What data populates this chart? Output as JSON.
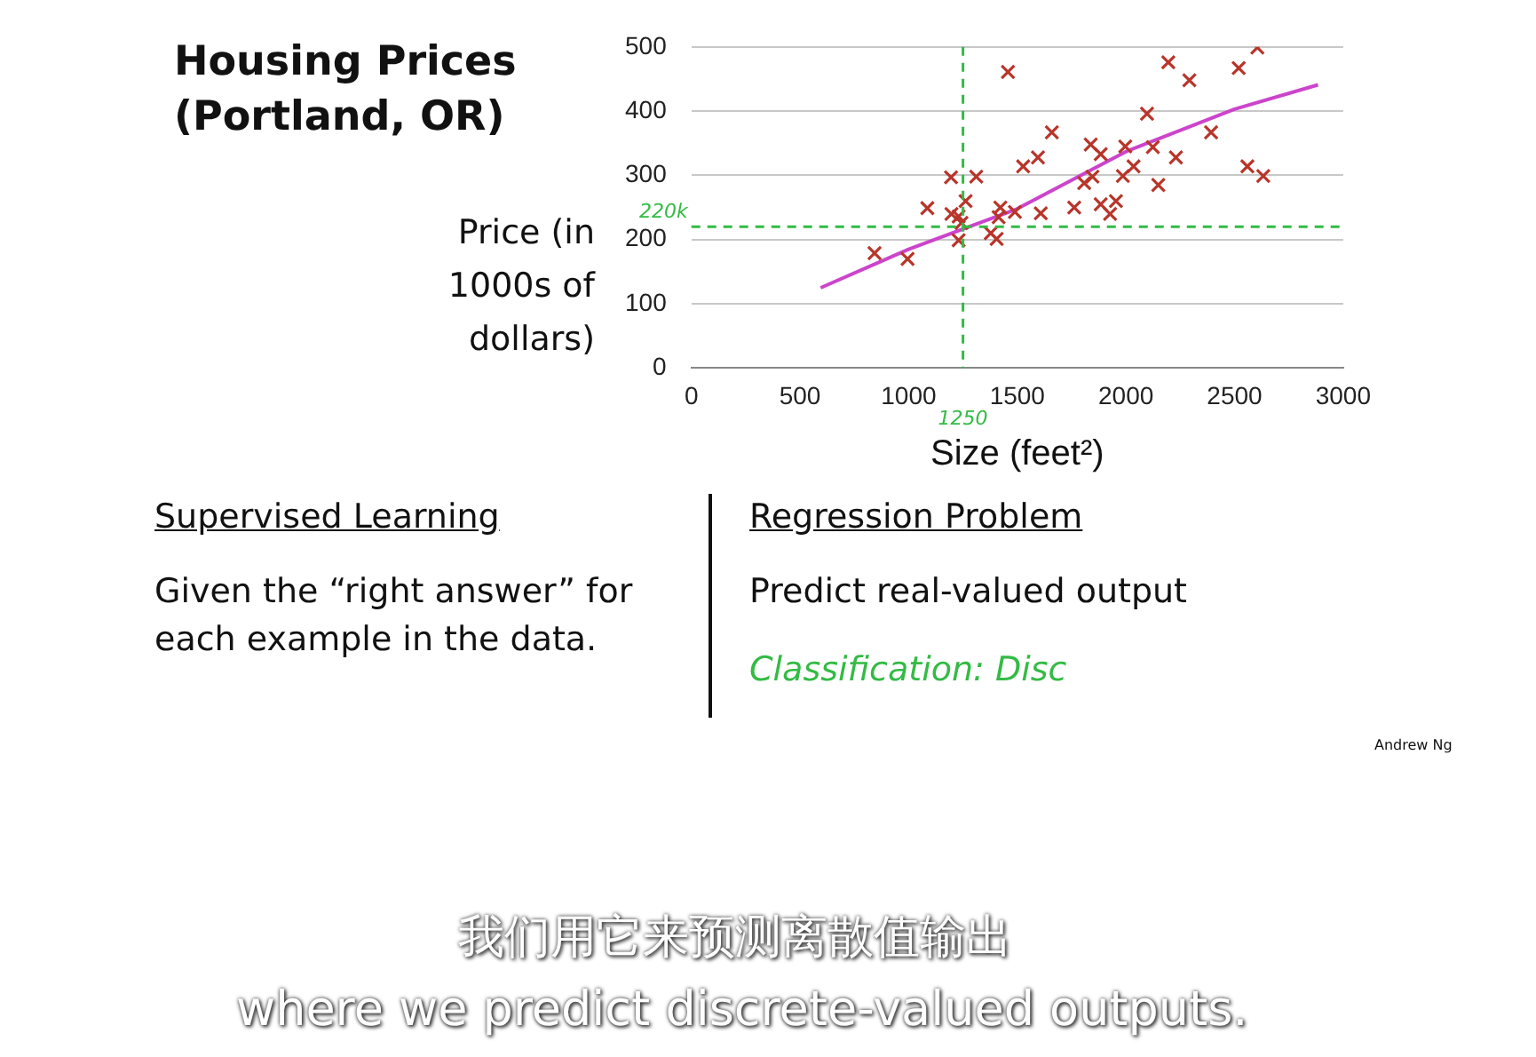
{
  "chart_data": {
    "type": "scatter",
    "title": "Housing Prices (Portland, OR)",
    "ylabel": "Price (in 1000s of dollars)",
    "xlabel": "Size (feet²)",
    "xlim": [
      0,
      3000
    ],
    "xticks": [
      0,
      500,
      1000,
      1500,
      2000,
      2500,
      3000
    ],
    "ylim": [
      0,
      500
    ],
    "yticks": [
      0,
      100,
      200,
      300,
      400,
      500
    ],
    "grid": "y",
    "legend": false,
    "series": [
      {
        "marker": "cross",
        "color": "#b8352a",
        "x": [
          843,
          995,
          1086,
          1195,
          1197,
          1230,
          1230,
          1262,
          1311,
          1243,
          1378,
          1405,
          1414,
          1422,
          1457,
          1489,
          1527,
          1595,
          1608,
          1659,
          1762,
          1808,
          1838,
          1846,
          1884,
          1884,
          1927,
          1954,
          1986,
          1997,
          2035,
          2097,
          2124,
          2149,
          2195,
          2230,
          2292,
          2392,
          2519,
          2559,
          2605,
          2632
        ],
        "values": [
          179,
          170,
          249,
          297,
          240,
          236,
          199,
          260,
          298,
          226,
          210,
          201,
          235,
          250,
          461,
          243,
          314,
          328,
          241,
          367,
          250,
          288,
          348,
          298,
          333,
          255,
          240,
          260,
          299,
          345,
          314,
          396,
          344,
          285,
          476,
          328,
          448,
          367,
          467,
          314,
          499,
          299
        ]
      },
      {
        "type": "line",
        "marker": "none",
        "color": "#cc44cc",
        "x": [
          595,
          1000,
          1500,
          2000,
          2500,
          2884
        ],
        "values": [
          125,
          185,
          248,
          337,
          403,
          441
        ]
      }
    ],
    "ref_lines": [
      {
        "axis": "x",
        "value": 1250,
        "label": "1250",
        "color": "#33bb44",
        "line_style": "dashed"
      },
      {
        "axis": "y",
        "value": 220,
        "label": "220k",
        "color": "#33bb44",
        "line_style": "dashed"
      }
    ],
    "annotations": [
      "Supervised Learning",
      "Given the “right answer” for each example in the data.",
      "Regression Problem",
      "Predict real-valued output",
      "Classification: Disc",
      "Andrew Ng",
      "我们用它来预测离散值输出",
      "where we predict discrete-valued outputs."
    ]
  }
}
